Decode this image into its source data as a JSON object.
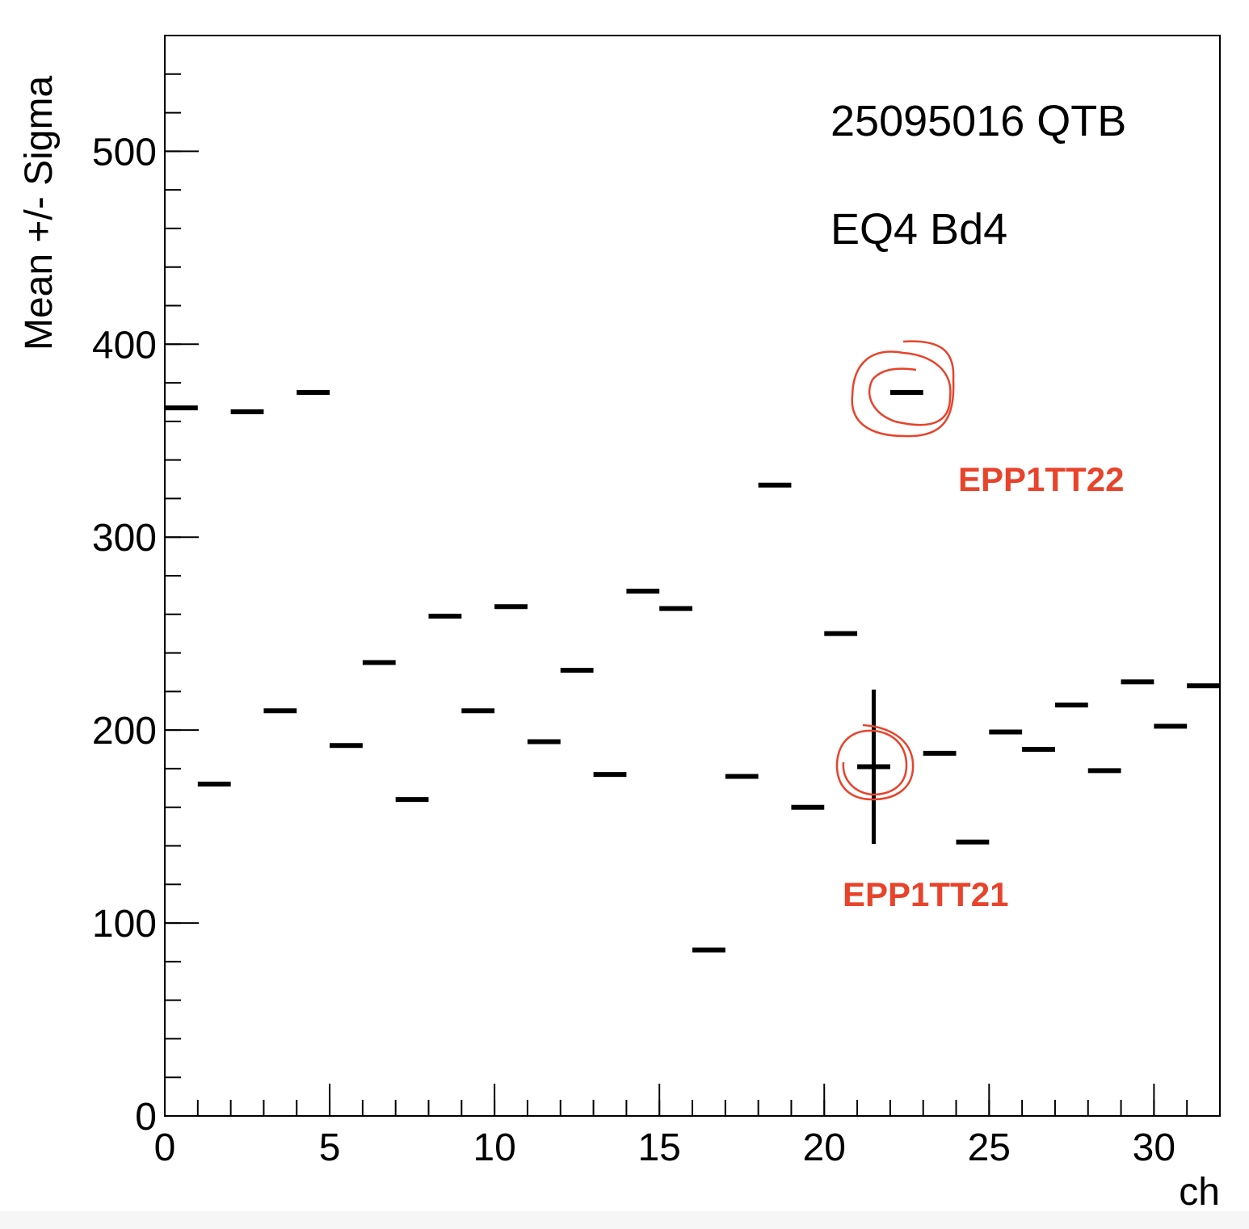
{
  "chart_data": {
    "type": "scatter",
    "xlabel": "ch",
    "ylabel": "Mean +/- Sigma",
    "xlim": [
      0,
      32
    ],
    "ylim": [
      0,
      560
    ],
    "x_ticks": [
      0,
      5,
      10,
      15,
      20,
      25,
      30
    ],
    "y_ticks": [
      0,
      100,
      200,
      300,
      400,
      500
    ],
    "grid": false,
    "annotations": [
      "25095016 QTB",
      "EQ4 Bd4"
    ],
    "highlight_labels": [
      "EPP1TT22",
      "EPP1TT21"
    ],
    "highlight_color": "#e8432b",
    "points": [
      {
        "ch": 0,
        "mean": 367,
        "sigma": 0
      },
      {
        "ch": 1,
        "mean": 172,
        "sigma": 0
      },
      {
        "ch": 2,
        "mean": 365,
        "sigma": 0
      },
      {
        "ch": 3,
        "mean": 210,
        "sigma": 0
      },
      {
        "ch": 4,
        "mean": 375,
        "sigma": 0
      },
      {
        "ch": 5,
        "mean": 192,
        "sigma": 0
      },
      {
        "ch": 6,
        "mean": 235,
        "sigma": 0
      },
      {
        "ch": 7,
        "mean": 164,
        "sigma": 0
      },
      {
        "ch": 8,
        "mean": 259,
        "sigma": 0
      },
      {
        "ch": 9,
        "mean": 210,
        "sigma": 0
      },
      {
        "ch": 10,
        "mean": 264,
        "sigma": 0
      },
      {
        "ch": 11,
        "mean": 194,
        "sigma": 0
      },
      {
        "ch": 12,
        "mean": 231,
        "sigma": 0
      },
      {
        "ch": 13,
        "mean": 177,
        "sigma": 0
      },
      {
        "ch": 14,
        "mean": 272,
        "sigma": 0
      },
      {
        "ch": 15,
        "mean": 263,
        "sigma": 0
      },
      {
        "ch": 16,
        "mean": 86,
        "sigma": 0
      },
      {
        "ch": 17,
        "mean": 176,
        "sigma": 0
      },
      {
        "ch": 18,
        "mean": 327,
        "sigma": 0
      },
      {
        "ch": 19,
        "mean": 160,
        "sigma": 0
      },
      {
        "ch": 20,
        "mean": 250,
        "sigma": 0
      },
      {
        "ch": 21,
        "mean": 181,
        "sigma": 40
      },
      {
        "ch": 22,
        "mean": 375,
        "sigma": 0
      },
      {
        "ch": 23,
        "mean": 188,
        "sigma": 0
      },
      {
        "ch": 24,
        "mean": 142,
        "sigma": 0
      },
      {
        "ch": 25,
        "mean": 199,
        "sigma": 0
      },
      {
        "ch": 26,
        "mean": 190,
        "sigma": 0
      },
      {
        "ch": 27,
        "mean": 213,
        "sigma": 0
      },
      {
        "ch": 28,
        "mean": 179,
        "sigma": 0
      },
      {
        "ch": 29,
        "mean": 225,
        "sigma": 0
      },
      {
        "ch": 30,
        "mean": 202,
        "sigma": 0
      },
      {
        "ch": 31,
        "mean": 223,
        "sigma": 0
      }
    ]
  }
}
